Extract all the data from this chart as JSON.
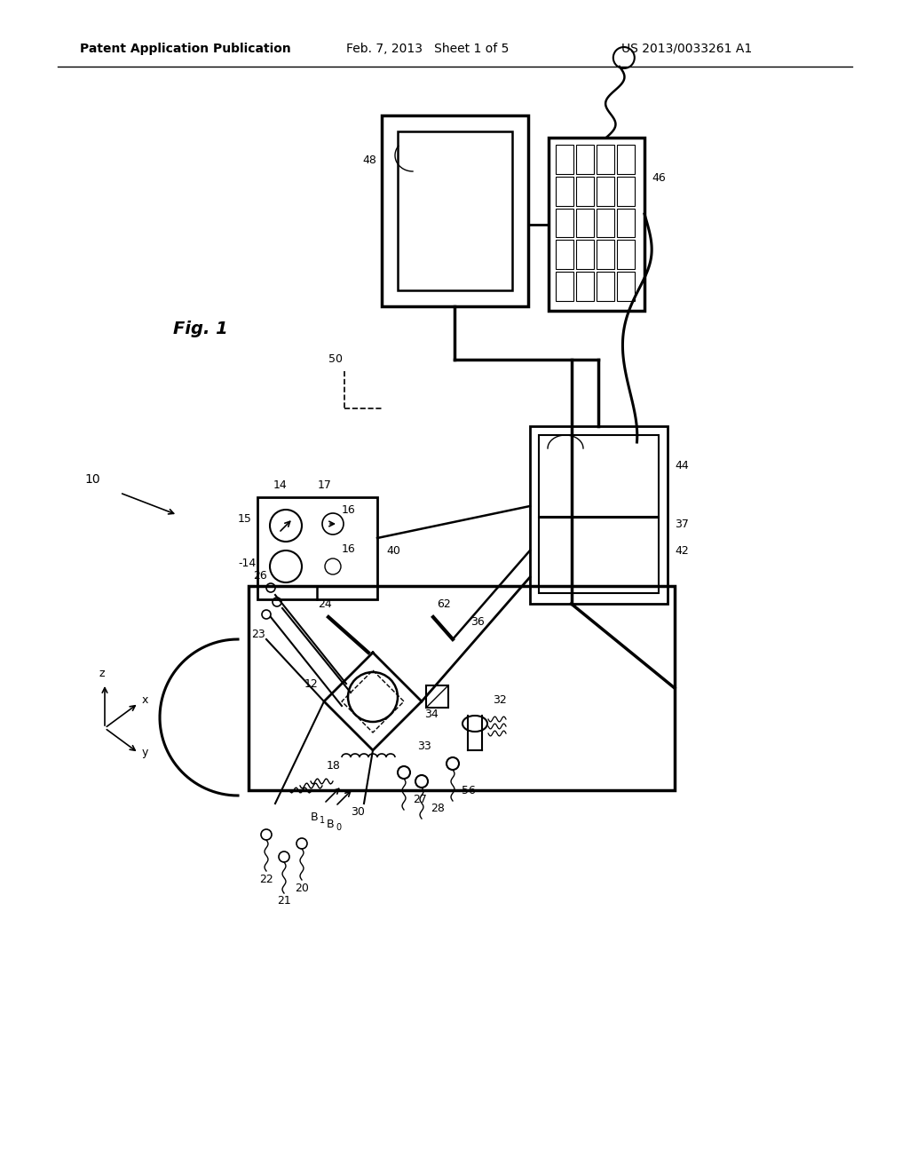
{
  "header_left": "Patent Application Publication",
  "header_center": "Feb. 7, 2013   Sheet 1 of 5",
  "header_right": "US 2013/0033261 A1",
  "bg_color": "#ffffff",
  "line_color": "#000000",
  "fig_label": "Fig. 1"
}
